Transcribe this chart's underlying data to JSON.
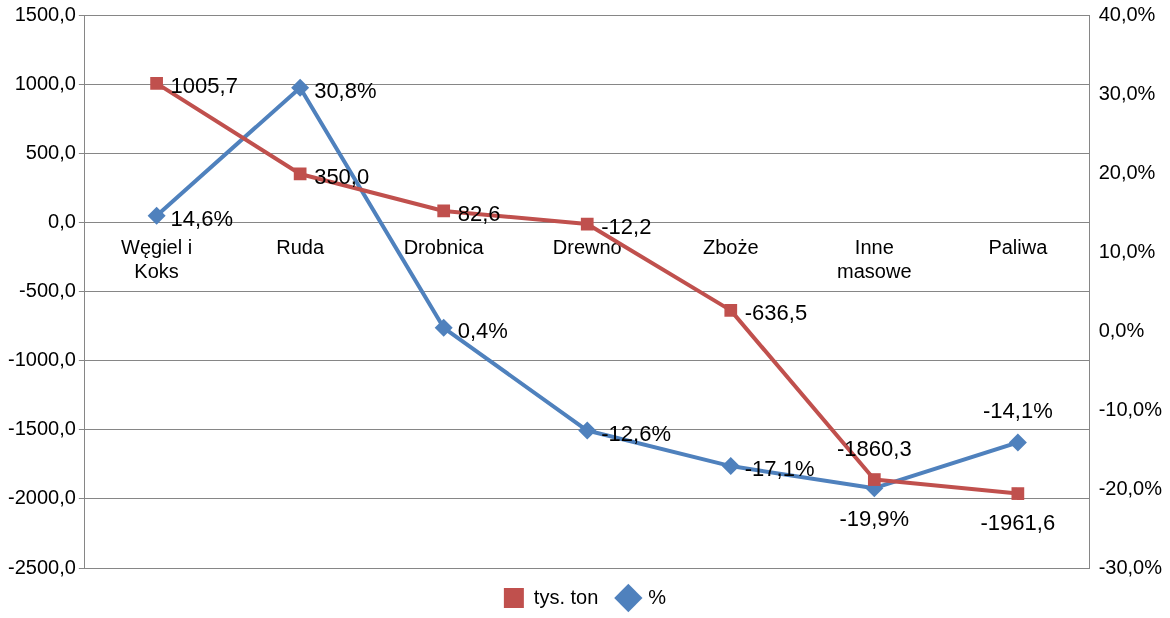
{
  "chart_data": {
    "type": "line",
    "categories": [
      "Węgiel i Koks",
      "Ruda",
      "Drobnica",
      "Drewno",
      "Zboże",
      "Inne masowe",
      "Paliwa"
    ],
    "series": [
      {
        "name": "tys. ton",
        "color": "#c0504d",
        "marker": "square",
        "values": [
          1005.7,
          350.0,
          82.6,
          -12.2,
          -636.5,
          -1860.3,
          -1961.6
        ],
        "value_labels": [
          "1005,7",
          "350,0",
          "82,6",
          "-12,2",
          "-636,5",
          "-1860,3",
          "-1961,6"
        ]
      },
      {
        "name": "%",
        "color": "#4f81bd",
        "marker": "diamond",
        "axis": "y2",
        "values": [
          14.6,
          30.8,
          0.4,
          -12.6,
          -17.1,
          -19.9,
          -14.1
        ],
        "value_labels": [
          "14,6%",
          "30,8%",
          "0,4%",
          "-12,6%",
          "-17,1%",
          "-19,9%",
          "-14,1%"
        ]
      }
    ],
    "ylim": [
      -2500,
      1500
    ],
    "yticks": [
      {
        "value": -2500,
        "label": "-2500,0"
      },
      {
        "value": -2000,
        "label": "-2000,0"
      },
      {
        "value": -1500,
        "label": "-1500,0"
      },
      {
        "value": -1000,
        "label": "-1000,0"
      },
      {
        "value": -500,
        "label": "-500,0"
      },
      {
        "value": 0,
        "label": "0,0"
      },
      {
        "value": 500,
        "label": "500,0"
      },
      {
        "value": 1000,
        "label": "1000,0"
      },
      {
        "value": 1500,
        "label": "1500,0"
      }
    ],
    "y2lim": [
      -30,
      40
    ],
    "y2ticks": [
      {
        "value": -30,
        "label": "-30,0%"
      },
      {
        "value": -20,
        "label": "-20,0%"
      },
      {
        "value": -10,
        "label": "-10,0%"
      },
      {
        "value": 0,
        "label": "0,0%"
      },
      {
        "value": 10,
        "label": "10,0%"
      },
      {
        "value": 20,
        "label": "20,0%"
      },
      {
        "value": 30,
        "label": "30,0%"
      },
      {
        "value": 40,
        "label": "40,0%"
      }
    ],
    "grid": "y",
    "legend": "bottom",
    "line_style": "solid"
  }
}
